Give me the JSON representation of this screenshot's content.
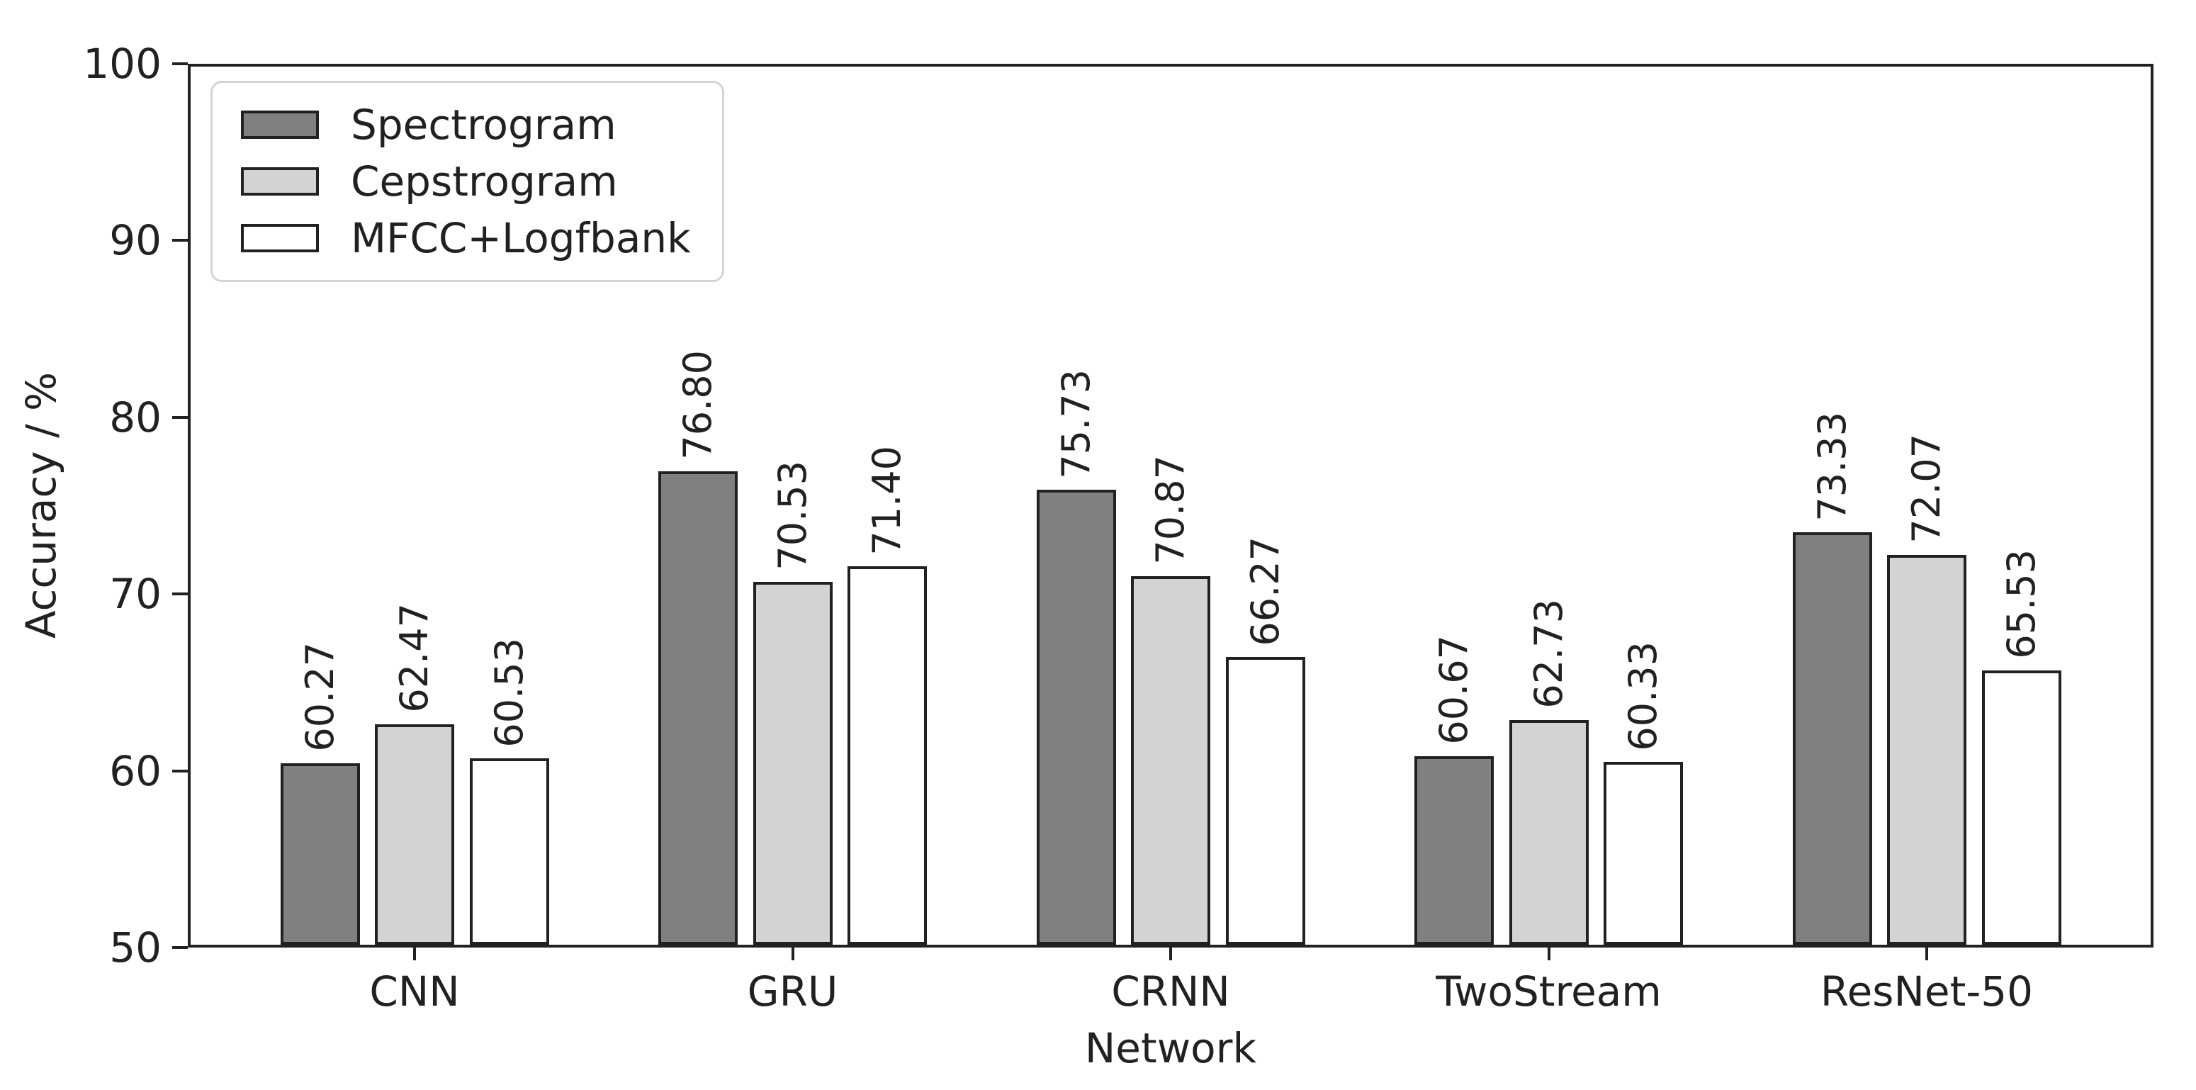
{
  "chart_data": {
    "type": "bar",
    "title": "",
    "xlabel": "Network",
    "ylabel": "Accuracy / %",
    "ylim": [
      50,
      100
    ],
    "yticks": [
      100,
      90,
      80,
      70,
      60,
      50
    ],
    "grid": false,
    "legend_position": "upper-left",
    "categories": [
      "CNN",
      "GRU",
      "CRNN",
      "TwoStream",
      "ResNet-50"
    ],
    "series": [
      {
        "name": "Spectrogram",
        "color": "#808080",
        "values": [
          60.27,
          76.8,
          75.73,
          60.67,
          73.33
        ],
        "value_labels": [
          "60.27",
          "76.80",
          "75.73",
          "60.67",
          "73.33"
        ]
      },
      {
        "name": "Cepstrogram",
        "color": "#d3d3d3",
        "values": [
          62.47,
          70.53,
          70.87,
          62.73,
          72.07
        ],
        "value_labels": [
          "62.47",
          "70.53",
          "70.87",
          "62.73",
          "72.07"
        ]
      },
      {
        "name": "MFCC+Logfbank",
        "color": "#ffffff",
        "values": [
          60.53,
          71.4,
          66.27,
          60.33,
          65.53
        ],
        "value_labels": [
          "60.53",
          "71.40",
          "66.27",
          "60.33",
          "65.53"
        ]
      }
    ],
    "colors": {
      "bar_edge": "#212121",
      "axis": "#212121",
      "background": "#ffffff",
      "legend_border": "#d4d4d4"
    }
  }
}
